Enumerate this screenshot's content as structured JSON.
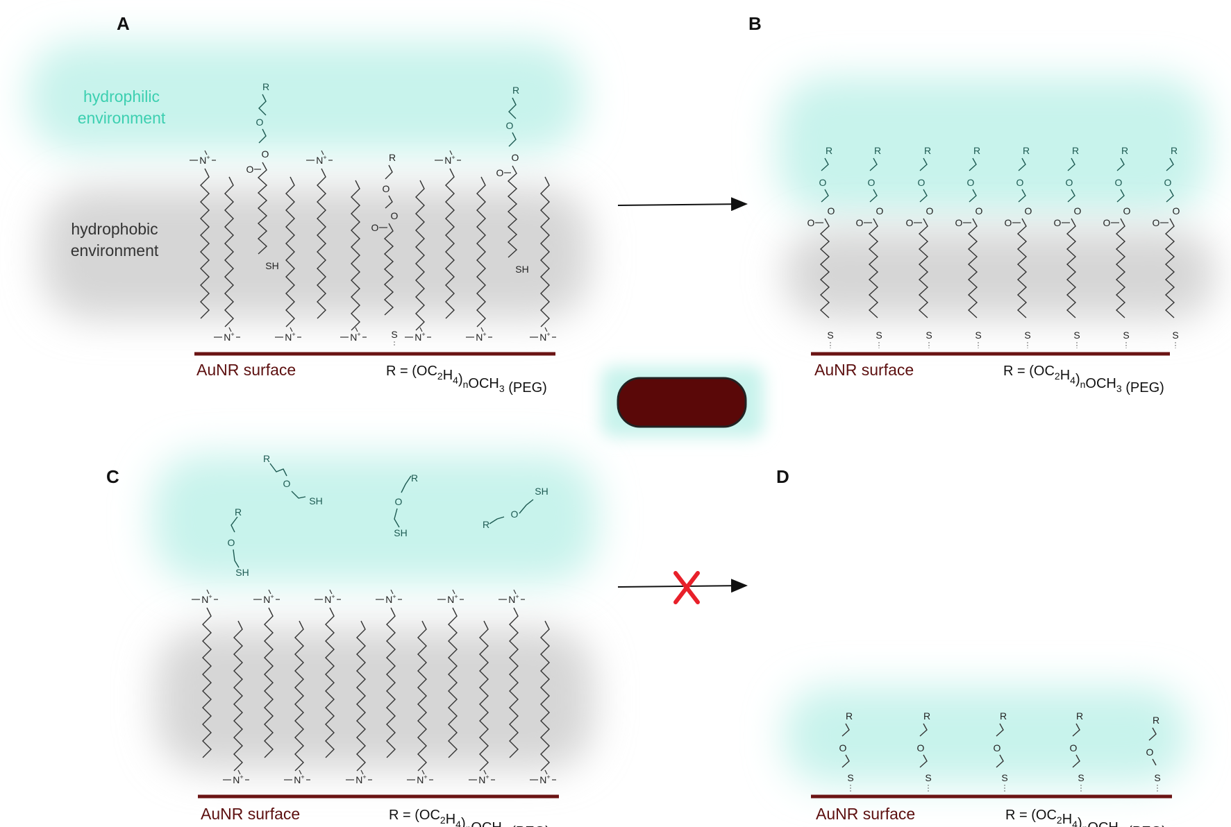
{
  "panels": {
    "A": {
      "letter": "A",
      "surface_label": "AuNR surface"
    },
    "B": {
      "letter": "B",
      "surface_label": "AuNR surface"
    },
    "C": {
      "letter": "C",
      "surface_label": "AuNR surface"
    },
    "D": {
      "letter": "D",
      "surface_label": "AuNR surface"
    }
  },
  "environments": {
    "hydrophilic": [
      "hydrophilic",
      "environment"
    ],
    "hydrophobic": [
      "hydrophobic",
      "environment"
    ]
  },
  "r_definition": {
    "prefix": "R = (OC",
    "sub1": "2",
    "mid1": "H",
    "sub2": "4",
    "mid2": ")",
    "sub3": "n",
    "mid3": "OCH",
    "sub4": "3",
    "suffix": " (PEG)"
  },
  "atoms": {
    "ammonium": "N",
    "charge": "+",
    "thiol": "SH",
    "sulfur": "S",
    "oxygen": "O",
    "r_group": "R"
  },
  "reaction": {
    "forward_arrow": "proceeds",
    "blocked_arrow": "blocked",
    "block_mark": "X"
  },
  "colors": {
    "hydrophilic_cloud": "#c8f3ec",
    "hydrophobic_cloud": "#d6d6d6",
    "surface": "#6b1414",
    "nanorod": "#5a0808",
    "peg_chain": "#1d5a52",
    "alkyl_chain": "#333333",
    "block_mark": "#e8202a",
    "philic_text": "#3ccfb0"
  }
}
